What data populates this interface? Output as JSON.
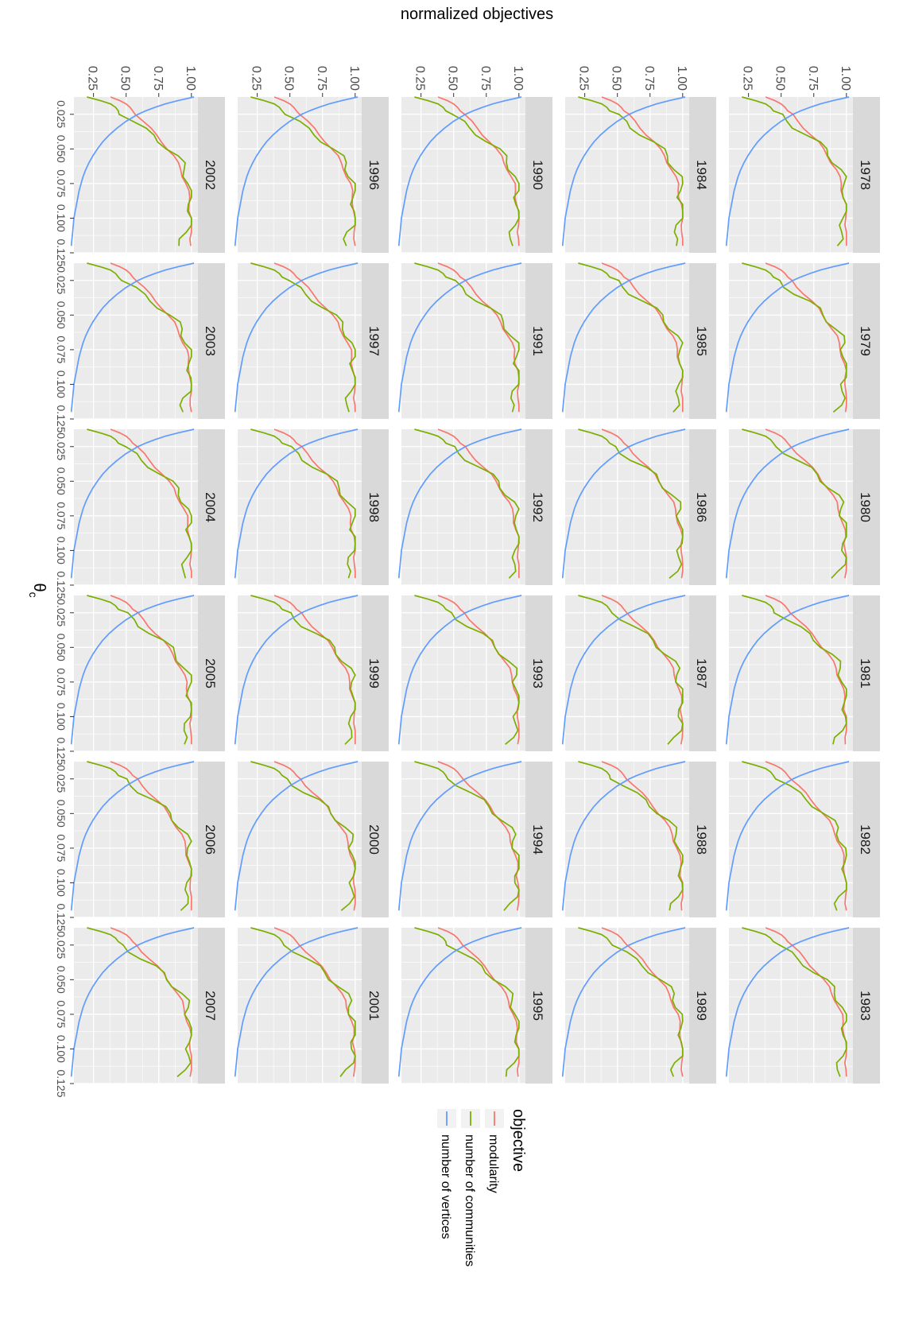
{
  "chart_data": {
    "type": "line",
    "orientation": "rotated 90 degrees clockwise",
    "facets": [
      "1978",
      "1979",
      "1980",
      "1981",
      "1982",
      "1983",
      "1984",
      "1985",
      "1986",
      "1987",
      "1988",
      "1989",
      "1990",
      "1991",
      "1992",
      "1993",
      "1994",
      "1995",
      "1996",
      "1997",
      "1998",
      "1999",
      "2000",
      "2001",
      "2002",
      "2003",
      "2004",
      "2005",
      "2006",
      "2007"
    ],
    "facet_grid": {
      "rows": 5,
      "cols": 6
    },
    "xlabel": "θc",
    "ylabel": "normalized objectives",
    "xlim": [
      0.0125,
      0.125
    ],
    "ylim": [
      0.1,
      1.05
    ],
    "x_ticks": [
      0.025,
      0.05,
      0.075,
      0.1,
      0.125
    ],
    "x_tick_labels": [
      "0.025",
      "0.050",
      "0.075",
      "0.100",
      "0.125"
    ],
    "y_ticks": [
      0.25,
      0.5,
      0.75,
      1.0
    ],
    "y_tick_labels": [
      "0.25",
      "0.50",
      "0.75",
      "1.00"
    ],
    "grid": true,
    "legend": {
      "title": "objective",
      "position": "right",
      "entries": [
        "modularity",
        "number of communities",
        "number of vertices"
      ]
    },
    "colors": {
      "modularity": "#F8766D",
      "number of communities": "#7CAE00",
      "number of vertices": "#619CFF",
      "panel_background": "#EBEBEB",
      "strip_background": "#D9D9D9",
      "grid_line": "#FFFFFF"
    },
    "x": [
      0.0125,
      0.015,
      0.0175,
      0.02,
      0.0225,
      0.025,
      0.03,
      0.035,
      0.04,
      0.045,
      0.05,
      0.055,
      0.06,
      0.065,
      0.07,
      0.075,
      0.08,
      0.085,
      0.09,
      0.095,
      0.1,
      0.105,
      0.11,
      0.115,
      0.12
    ],
    "series": [
      {
        "name": "modularity",
        "values": [
          0.38,
          0.45,
          0.5,
          0.53,
          0.55,
          0.58,
          0.63,
          0.68,
          0.73,
          0.78,
          0.82,
          0.86,
          0.89,
          0.92,
          0.94,
          0.96,
          0.97,
          0.98,
          0.99,
          0.99,
          1.0,
          1.0,
          1.0,
          1.0,
          1.0
        ]
      },
      {
        "name": "number of communities",
        "values": [
          0.2,
          0.3,
          0.38,
          0.42,
          0.44,
          0.48,
          0.55,
          0.62,
          0.7,
          0.77,
          0.83,
          0.88,
          0.92,
          0.95,
          0.97,
          0.98,
          1.0,
          0.99,
          1.0,
          1.0,
          0.99,
          0.98,
          0.96,
          0.94,
          0.92
        ]
      },
      {
        "name": "number of vertices",
        "values": [
          1.02,
          0.9,
          0.8,
          0.72,
          0.65,
          0.59,
          0.5,
          0.43,
          0.37,
          0.32,
          0.28,
          0.245,
          0.215,
          0.19,
          0.17,
          0.155,
          0.14,
          0.13,
          0.12,
          0.11,
          0.1,
          0.095,
          0.09,
          0.085,
          0.08
        ]
      }
    ]
  }
}
